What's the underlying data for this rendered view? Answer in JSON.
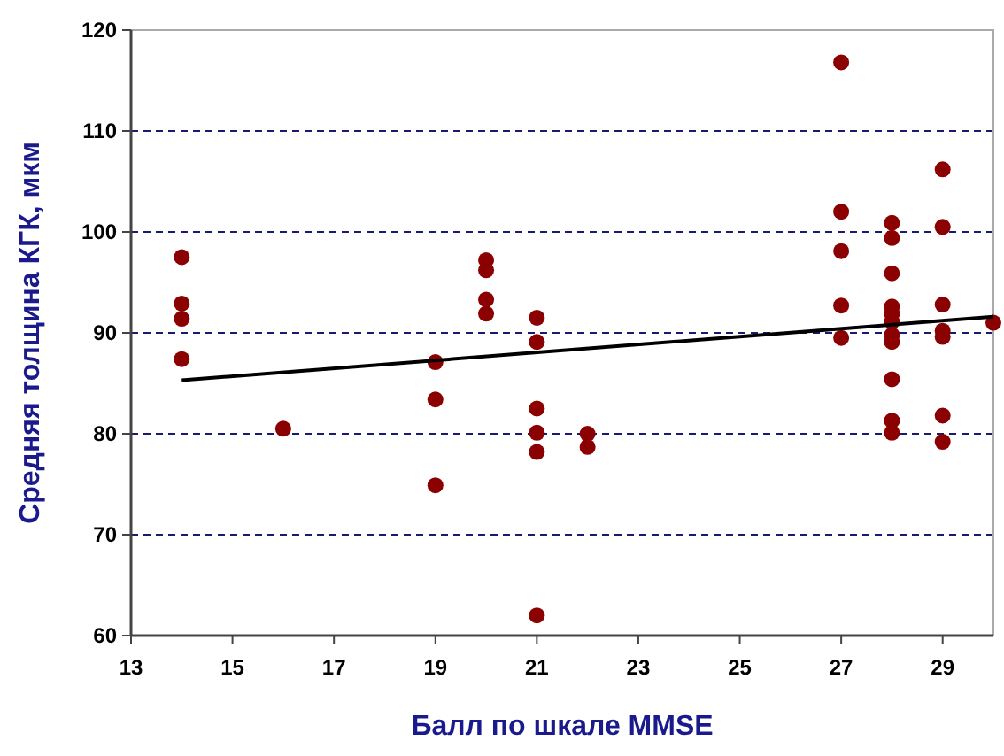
{
  "chart_data": {
    "type": "scatter",
    "xlabel": "Балл по шкале MMSE",
    "ylabel": "Средняя толщина КГК, мкм",
    "xlim": [
      13,
      30
    ],
    "xticks": [
      13,
      15,
      17,
      19,
      21,
      23,
      25,
      27,
      29
    ],
    "ylim": [
      60,
      120
    ],
    "yticks": [
      60,
      70,
      80,
      90,
      100,
      110,
      120
    ],
    "grid": "y",
    "marker": "circle",
    "series": [
      {
        "color": "#8b0000",
        "x": [
          14,
          14,
          14,
          14,
          16,
          19,
          19,
          19,
          20,
          20,
          20,
          20,
          21,
          21,
          21,
          21,
          21,
          21,
          22,
          22,
          27,
          27,
          27,
          27,
          27,
          28,
          28,
          28,
          28,
          28,
          28,
          28,
          28,
          28,
          28,
          28,
          29,
          29,
          29,
          29,
          29,
          29,
          29,
          30
        ],
        "values": [
          97.5,
          92.9,
          91.4,
          87.4,
          80.5,
          87.1,
          83.4,
          74.9,
          97.2,
          96.2,
          93.3,
          91.9,
          91.5,
          89.1,
          82.5,
          80.1,
          78.2,
          62,
          80,
          78.7,
          116.8,
          102,
          98.1,
          92.7,
          89.5,
          100.9,
          99.4,
          95.9,
          92.6,
          91.9,
          91.1,
          89.8,
          89.1,
          85.4,
          81.3,
          80.1,
          106.2,
          100.5,
          92.8,
          90.2,
          89.6,
          81.8,
          79.2,
          91
        ]
      },
      {
        "type": "line",
        "color": "#000000",
        "marker": "none",
        "x": [
          14,
          30
        ],
        "values": [
          85.3,
          91.6
        ]
      }
    ]
  }
}
